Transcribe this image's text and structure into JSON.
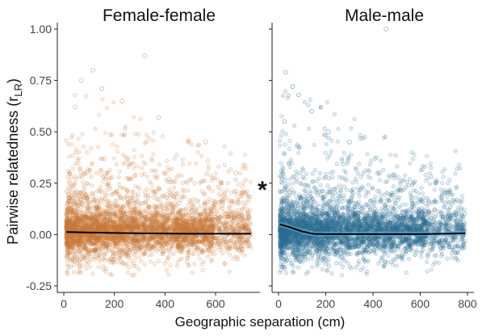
{
  "chart_data": [
    {
      "type": "scatter",
      "title": "Female-female",
      "xlabel": "Geographic separation (cm)",
      "ylabel": "Pairwise relatedness (rLR)",
      "xlim": [
        0,
        750
      ],
      "ylim": [
        -0.25,
        1.0
      ],
      "x_ticks": [
        0,
        200,
        400,
        600
      ],
      "y_ticks": [
        -0.25,
        0.0,
        0.25,
        0.5,
        0.75,
        1.0
      ],
      "y_tick_labels": [
        "-0.25",
        "0.00",
        "0.25",
        "0.50",
        "0.75",
        "1.00"
      ],
      "point_color": "#c8793a",
      "point_cloud": {
        "x_range": [
          10,
          740
        ],
        "core_y_range": [
          -0.15,
          0.3
        ],
        "sparse_y_max": 0.87
      },
      "outliers": [
        {
          "x": 320,
          "y": 0.87
        },
        {
          "x": 115,
          "y": 0.8
        },
        {
          "x": 70,
          "y": 0.75
        },
        {
          "x": 150,
          "y": 0.71
        },
        {
          "x": 45,
          "y": 0.62
        },
        {
          "x": 230,
          "y": 0.65
        },
        {
          "x": 375,
          "y": 0.57
        },
        {
          "x": 560,
          "y": 0.45
        },
        {
          "x": 680,
          "y": 0.3
        }
      ],
      "trend_color": "#000000",
      "trend": {
        "x": [
          10,
          100,
          200,
          300,
          400,
          500,
          600,
          740
        ],
        "y": [
          0.012,
          0.01,
          0.008,
          0.006,
          0.005,
          0.004,
          0.004,
          0.004
        ]
      },
      "grid": false
    },
    {
      "type": "scatter",
      "title": "Male-male",
      "xlabel": "Geographic separation (cm)",
      "ylabel": "Pairwise relatedness (rLR)",
      "xlim": [
        0,
        800
      ],
      "ylim": [
        -0.25,
        1.0
      ],
      "x_ticks": [
        0,
        200,
        400,
        600,
        800
      ],
      "y_ticks": [
        -0.25,
        0.0,
        0.25,
        0.5,
        0.75,
        1.0
      ],
      "point_color": "#2e6f93",
      "point_cloud": {
        "x_range": [
          5,
          790
        ],
        "core_y_range": [
          -0.15,
          0.3
        ],
        "sparse_y_max": 1.0
      },
      "outliers": [
        {
          "x": 455,
          "y": 1.0
        },
        {
          "x": 30,
          "y": 0.79
        },
        {
          "x": 60,
          "y": 0.72
        },
        {
          "x": 85,
          "y": 0.68
        },
        {
          "x": 140,
          "y": 0.6
        },
        {
          "x": 25,
          "y": 0.55
        },
        {
          "x": 210,
          "y": 0.5
        },
        {
          "x": 300,
          "y": 0.45
        }
      ],
      "trend_color": "#000000",
      "trend": {
        "x": [
          5,
          50,
          100,
          150,
          200,
          300,
          400,
          500,
          600,
          700,
          790
        ],
        "y": [
          0.05,
          0.035,
          0.015,
          0.003,
          0.002,
          0.002,
          0.002,
          0.002,
          0.002,
          0.004,
          0.006
        ]
      },
      "confidence_band_color": "#5fb3e0",
      "grid": false
    }
  ],
  "annotation": {
    "significance_marker": "*"
  }
}
